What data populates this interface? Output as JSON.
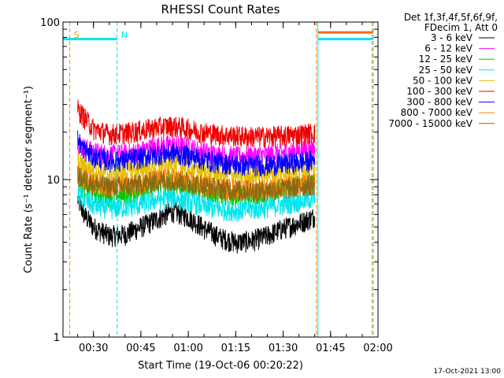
{
  "chart_data": {
    "type": "line",
    "title": "RHESSI Count Rates",
    "xlabel": "Start Time (19-Oct-06 00:20:22)",
    "ylabel": "Count Rate (s⁻¹ detector segment⁻¹)",
    "y_scale": "log",
    "ylim": [
      1,
      100
    ],
    "xlim": [
      "00:20:22",
      "02:00:00"
    ],
    "x_ticks": [
      "00:30",
      "00:45",
      "01:00",
      "01:15",
      "01:30",
      "01:45",
      "02:00"
    ],
    "y_ticks": [
      "1",
      "10",
      "100"
    ],
    "grid": false,
    "legend_position": "outside-right",
    "legend_header": [
      "Det 1f,3f,4f,5f,6f,9f,",
      "FDecim 1, Att 0"
    ],
    "footer": "17-Oct-2021 13:00",
    "markers": [
      {
        "label": "S",
        "time": "00:22:30",
        "color": "#ff8c00"
      },
      {
        "label": "N",
        "time": "00:37:30",
        "color": "#00e5ee"
      },
      {
        "label": "",
        "time": "01:40:30",
        "color": "#ff8c00"
      },
      {
        "label": "",
        "time": "01:41:00",
        "color": "#00e5ee"
      },
      {
        "label": "",
        "time": "01:58:10",
        "color": "#ff8c00"
      },
      {
        "label": "",
        "time": "01:58:30",
        "color": "#00e5ee"
      }
    ],
    "bars": [
      {
        "start": "00:20:22",
        "end": "00:37:30",
        "value": 78,
        "color": "#00e5ee"
      },
      {
        "start": "01:41:00",
        "end": "01:58:30",
        "value": 78,
        "color": "#00e5ee"
      },
      {
        "start": "01:41:00",
        "end": "01:58:30",
        "value": 86,
        "color": "#ff6a00"
      }
    ],
    "x_samples": [
      "00:25",
      "00:27",
      "00:30",
      "00:35",
      "00:40",
      "00:45",
      "00:50",
      "00:55",
      "01:00",
      "01:05",
      "01:10",
      "01:15",
      "01:20",
      "01:25",
      "01:30",
      "01:35",
      "01:39",
      "01:40"
    ],
    "series": [
      {
        "name": "3 - 6 keV",
        "color": "#000000",
        "values": [
          7.5,
          6.0,
          5.0,
          4.4,
          4.5,
          5.0,
          5.6,
          6.3,
          5.8,
          4.9,
          4.3,
          4.0,
          4.1,
          4.4,
          4.9,
          5.3,
          5.7,
          5.9
        ]
      },
      {
        "name": "6 - 12 keV",
        "color": "#ff00ff",
        "values": [
          17.0,
          16.0,
          15.0,
          14.4,
          14.6,
          15.2,
          16.3,
          16.6,
          16.0,
          15.0,
          14.4,
          14.0,
          14.2,
          14.4,
          14.8,
          15.3,
          15.8,
          16.0
        ]
      },
      {
        "name": "12 - 25 keV",
        "color": "#00cc00",
        "values": [
          10.0,
          9.0,
          8.3,
          7.9,
          8.0,
          8.5,
          9.2,
          9.5,
          9.1,
          8.5,
          8.1,
          7.9,
          8.0,
          8.2,
          8.6,
          9.0,
          9.4,
          9.6
        ]
      },
      {
        "name": "25 - 50 keV",
        "color": "#00e5ee",
        "values": [
          8.0,
          7.5,
          6.9,
          6.6,
          6.7,
          7.0,
          7.5,
          7.7,
          7.3,
          6.8,
          6.5,
          6.4,
          6.5,
          6.7,
          7.0,
          7.3,
          7.6,
          7.7
        ]
      },
      {
        "name": "50 - 100 keV",
        "color": "#e5c000",
        "values": [
          13.0,
          12.0,
          11.5,
          11.0,
          11.2,
          11.6,
          12.2,
          12.5,
          12.0,
          11.3,
          10.9,
          10.6,
          10.7,
          10.9,
          11.2,
          11.7,
          12.0,
          12.2
        ]
      },
      {
        "name": "100 - 300 keV",
        "color": "#ee0000",
        "values": [
          28.0,
          25.0,
          21.0,
          19.5,
          19.8,
          20.5,
          21.5,
          22.0,
          21.0,
          20.0,
          19.3,
          19.0,
          18.8,
          18.8,
          19.0,
          19.4,
          19.8,
          20.0
        ]
      },
      {
        "name": "300 - 800 keV",
        "color": "#0000ff",
        "values": [
          18.0,
          15.5,
          14.0,
          13.2,
          13.3,
          13.8,
          14.5,
          14.8,
          14.2,
          13.4,
          12.8,
          12.5,
          12.4,
          12.4,
          12.6,
          12.9,
          13.2,
          13.3
        ]
      },
      {
        "name": "800 - 7000 keV",
        "color": "#ff8000",
        "values": [
          11.0,
          10.2,
          9.6,
          9.1,
          9.2,
          9.5,
          10.0,
          10.2,
          9.8,
          9.2,
          8.9,
          8.7,
          8.6,
          8.7,
          8.9,
          9.2,
          9.5,
          9.6
        ]
      },
      {
        "name": "7000 - 15000 keV",
        "color": "#8b6914",
        "values": [
          10.5,
          10.0,
          9.4,
          9.0,
          9.1,
          9.4,
          9.8,
          10.0,
          9.6,
          9.1,
          8.8,
          8.6,
          8.5,
          8.6,
          8.8,
          9.1,
          9.3,
          9.4
        ]
      }
    ]
  }
}
